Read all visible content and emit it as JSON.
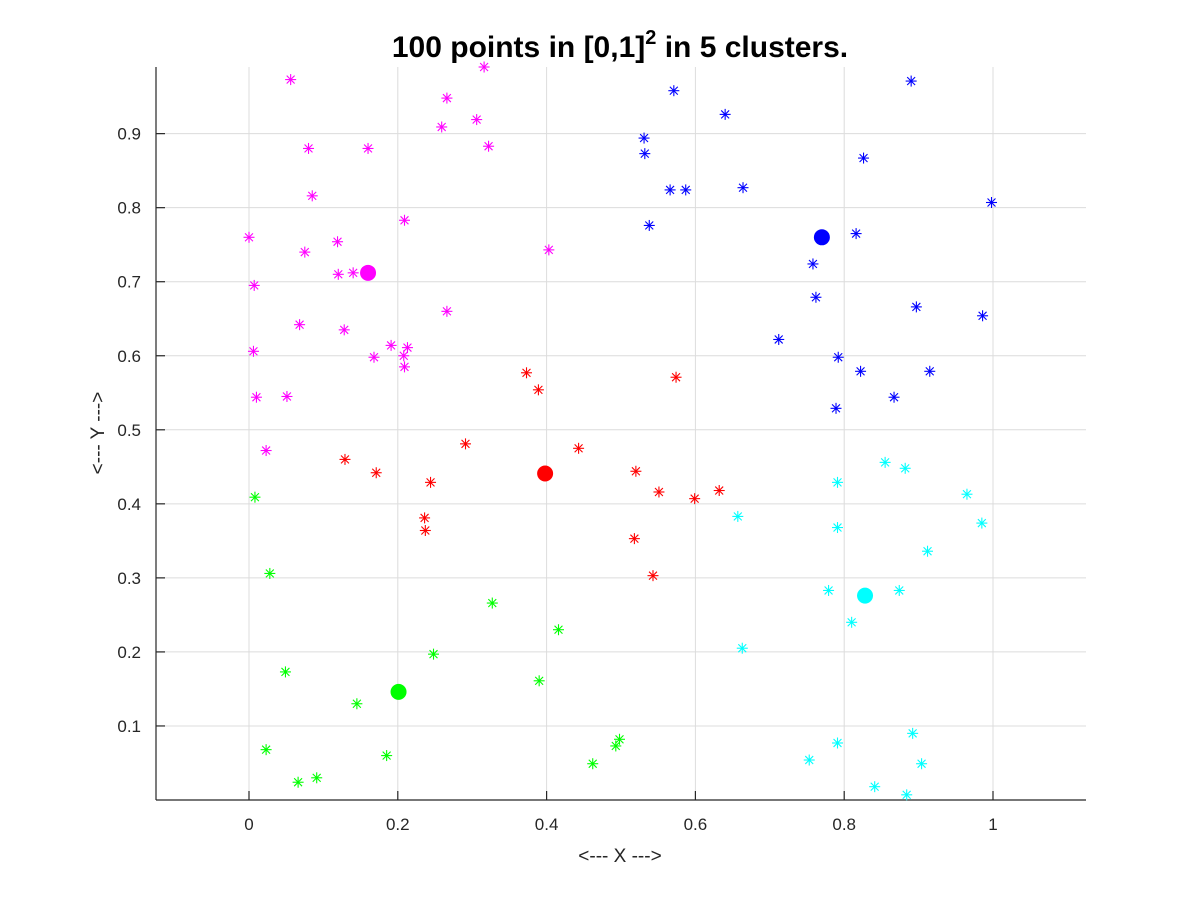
{
  "chart_data": {
    "type": "scatter",
    "title": {
      "main": "100 points in [0,1]",
      "sup": "2",
      "rest": " in 5 clusters."
    },
    "xlabel": "<--- X --->",
    "ylabel": "<--- Y --->",
    "xlim": [
      -0.125,
      1.125
    ],
    "ylim": [
      0.0,
      0.99
    ],
    "xticks": [
      0,
      0.2,
      0.4,
      0.6,
      0.8,
      1
    ],
    "xtick_labels": [
      "0",
      "0.2",
      "0.4",
      "0.6",
      "0.8",
      "1"
    ],
    "yticks": [
      0.1,
      0.2,
      0.3,
      0.4,
      0.5,
      0.6,
      0.7,
      0.8,
      0.9
    ],
    "ytick_labels": [
      "0.1",
      "0.2",
      "0.3",
      "0.4",
      "0.5",
      "0.6",
      "0.7",
      "0.8",
      "0.9"
    ],
    "grid": true,
    "series": [
      {
        "color": "#ff00ff",
        "centroid": [
          0.16,
          0.712
        ],
        "points": [
          [
            0.056,
            0.973
          ],
          [
            0.266,
            0.948
          ],
          [
            0.316,
            0.99
          ],
          [
            0.259,
            0.909
          ],
          [
            0.306,
            0.919
          ],
          [
            0.08,
            0.88
          ],
          [
            0.16,
            0.88
          ],
          [
            0.322,
            0.883
          ],
          [
            0.085,
            0.816
          ],
          [
            0.0,
            0.76
          ],
          [
            0.119,
            0.754
          ],
          [
            0.209,
            0.783
          ],
          [
            0.075,
            0.74
          ],
          [
            0.403,
            0.743
          ],
          [
            0.007,
            0.695
          ],
          [
            0.12,
            0.71
          ],
          [
            0.14,
            0.712
          ],
          [
            0.068,
            0.642
          ],
          [
            0.128,
            0.635
          ],
          [
            0.266,
            0.66
          ],
          [
            0.006,
            0.606
          ],
          [
            0.168,
            0.598
          ],
          [
            0.191,
            0.614
          ],
          [
            0.213,
            0.611
          ],
          [
            0.208,
            0.6
          ],
          [
            0.209,
            0.585
          ],
          [
            0.01,
            0.544
          ],
          [
            0.051,
            0.545
          ],
          [
            0.023,
            0.472
          ]
        ]
      },
      {
        "color": "#0000ff",
        "centroid": [
          0.77,
          0.76
        ],
        "points": [
          [
            0.571,
            0.958
          ],
          [
            0.89,
            0.971
          ],
          [
            0.64,
            0.926
          ],
          [
            0.531,
            0.894
          ],
          [
            0.532,
            0.873
          ],
          [
            0.826,
            0.867
          ],
          [
            0.566,
            0.824
          ],
          [
            0.587,
            0.824
          ],
          [
            0.664,
            0.827
          ],
          [
            0.538,
            0.776
          ],
          [
            0.998,
            0.807
          ],
          [
            0.816,
            0.765
          ],
          [
            0.758,
            0.724
          ],
          [
            0.762,
            0.679
          ],
          [
            0.897,
            0.666
          ],
          [
            0.986,
            0.654
          ],
          [
            0.712,
            0.622
          ],
          [
            0.792,
            0.598
          ],
          [
            0.822,
            0.579
          ],
          [
            0.915,
            0.579
          ],
          [
            0.867,
            0.544
          ],
          [
            0.789,
            0.529
          ]
        ]
      },
      {
        "color": "#ff0000",
        "centroid": [
          0.398,
          0.441
        ],
        "points": [
          [
            0.373,
            0.577
          ],
          [
            0.389,
            0.554
          ],
          [
            0.574,
            0.571
          ],
          [
            0.291,
            0.481
          ],
          [
            0.443,
            0.475
          ],
          [
            0.129,
            0.46
          ],
          [
            0.171,
            0.442
          ],
          [
            0.52,
            0.444
          ],
          [
            0.244,
            0.429
          ],
          [
            0.551,
            0.416
          ],
          [
            0.599,
            0.407
          ],
          [
            0.632,
            0.418
          ],
          [
            0.236,
            0.381
          ],
          [
            0.237,
            0.364
          ],
          [
            0.518,
            0.353
          ],
          [
            0.543,
            0.303
          ]
        ]
      },
      {
        "color": "#00ffff",
        "centroid": [
          0.828,
          0.276
        ],
        "points": [
          [
            0.855,
            0.456
          ],
          [
            0.882,
            0.448
          ],
          [
            0.791,
            0.429
          ],
          [
            0.965,
            0.413
          ],
          [
            0.657,
            0.383
          ],
          [
            0.985,
            0.374
          ],
          [
            0.791,
            0.368
          ],
          [
            0.912,
            0.336
          ],
          [
            0.779,
            0.283
          ],
          [
            0.874,
            0.283
          ],
          [
            0.81,
            0.24
          ],
          [
            0.663,
            0.205
          ],
          [
            0.892,
            0.09
          ],
          [
            0.791,
            0.077
          ],
          [
            0.753,
            0.054
          ],
          [
            0.904,
            0.049
          ],
          [
            0.841,
            0.018
          ],
          [
            0.884,
            0.007
          ]
        ]
      },
      {
        "color": "#00ff00",
        "centroid": [
          0.201,
          0.146
        ],
        "points": [
          [
            0.008,
            0.409
          ],
          [
            0.028,
            0.306
          ],
          [
            0.327,
            0.266
          ],
          [
            0.416,
            0.23
          ],
          [
            0.248,
            0.197
          ],
          [
            0.049,
            0.173
          ],
          [
            0.39,
            0.161
          ],
          [
            0.145,
            0.13
          ],
          [
            0.023,
            0.068
          ],
          [
            0.185,
            0.06
          ],
          [
            0.498,
            0.082
          ],
          [
            0.493,
            0.073
          ],
          [
            0.462,
            0.049
          ],
          [
            0.091,
            0.03
          ],
          [
            0.066,
            0.024
          ]
        ]
      }
    ]
  }
}
